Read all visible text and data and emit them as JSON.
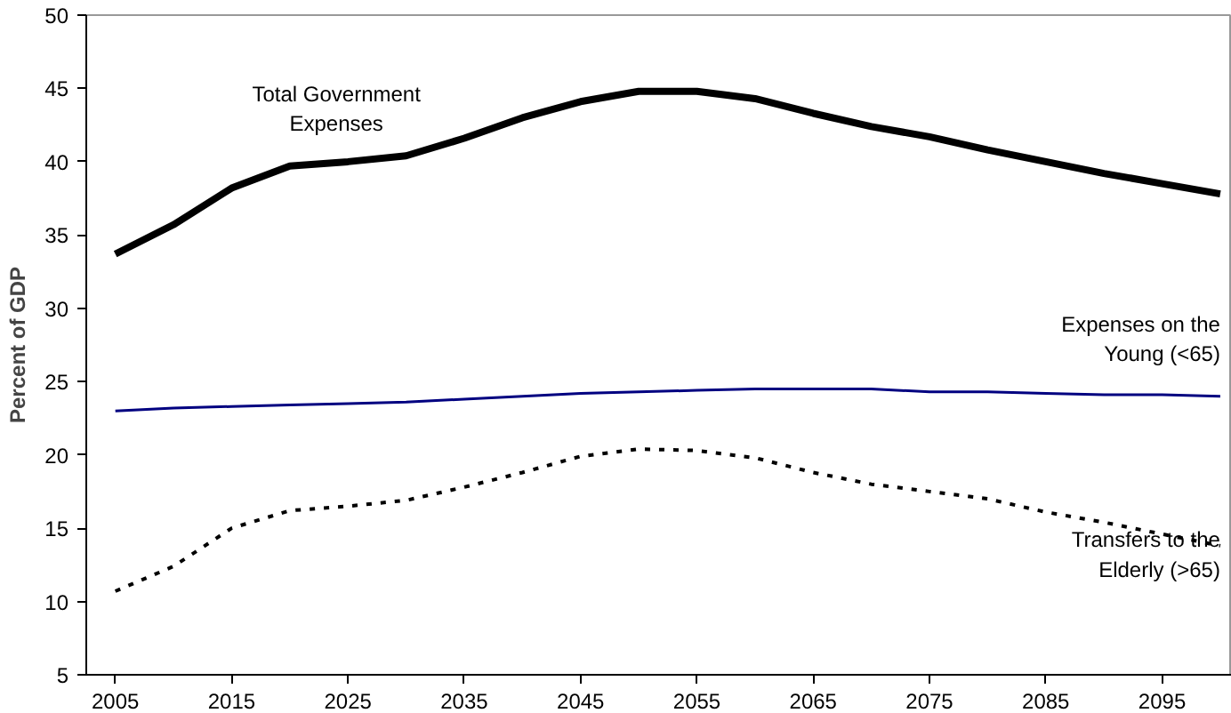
{
  "chart_data": {
    "type": "line",
    "ylabel": "Percent of GDP",
    "x": [
      2005,
      2010,
      2015,
      2020,
      2025,
      2030,
      2035,
      2040,
      2045,
      2050,
      2055,
      2060,
      2065,
      2070,
      2075,
      2080,
      2085,
      2090,
      2095,
      2100
    ],
    "series": [
      {
        "name": "Total Government Expenses",
        "color": "#000000",
        "line_style": "solid",
        "values": [
          33.7,
          35.7,
          38.2,
          39.7,
          40.0,
          40.4,
          41.6,
          43.0,
          44.1,
          44.8,
          44.8,
          44.3,
          43.3,
          42.4,
          41.7,
          40.8,
          40.0,
          39.2,
          38.5,
          37.8
        ]
      },
      {
        "name": "Expenses on the Young (<65)",
        "color": "#000080",
        "line_style": "solid",
        "values": [
          23.0,
          23.2,
          23.3,
          23.4,
          23.5,
          23.6,
          23.8,
          24.0,
          24.2,
          24.3,
          24.4,
          24.5,
          24.5,
          24.5,
          24.3,
          24.3,
          24.2,
          24.1,
          24.1,
          24.0
        ]
      },
      {
        "name": "Transfers to the Elderly (>65)",
        "color": "#000000",
        "line_style": "dotted",
        "values": [
          10.7,
          12.4,
          15.0,
          16.2,
          16.5,
          16.9,
          17.8,
          18.8,
          19.9,
          20.4,
          20.3,
          19.8,
          18.8,
          18.0,
          17.5,
          17.0,
          16.1,
          15.4,
          14.6,
          13.8
        ]
      }
    ],
    "xlim": [
      2002.5,
      2101
    ],
    "xticks": [
      2005,
      2015,
      2025,
      2035,
      2045,
      2055,
      2065,
      2075,
      2085,
      2095
    ],
    "ylim": [
      5,
      50
    ],
    "yticks": [
      5,
      10,
      15,
      20,
      25,
      30,
      35,
      40,
      45,
      50
    ],
    "marker": "none"
  }
}
